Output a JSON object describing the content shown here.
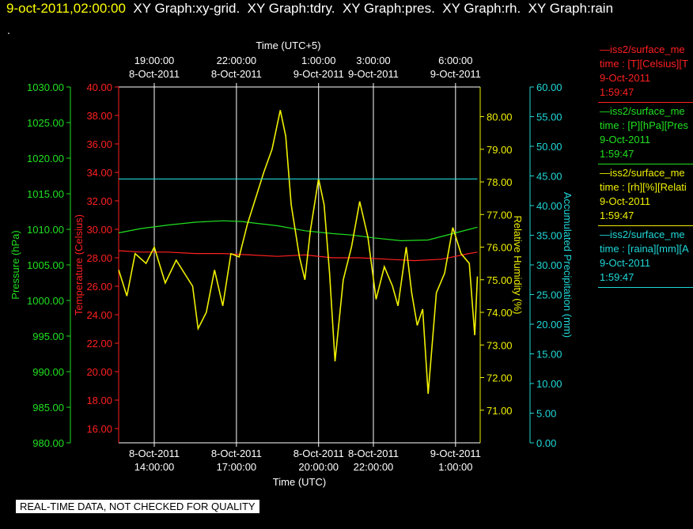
{
  "header": {
    "datetime": "9-oct-2011,02:00:00",
    "tabs": [
      "XY Graph:xy-grid.",
      "XY Graph:tdry.",
      "XY Graph:pres.",
      "XY Graph:rh.",
      "XY Graph:rain"
    ]
  },
  "dot": ".",
  "disclaimer": "REAL-TIME DATA, NOT CHECKED FOR QUALITY",
  "legend": [
    {
      "name": "—iss2/surface_me",
      "field": "time : [T][Celsius][T",
      "date": "9-Oct-2011",
      "time": "1:59:47",
      "color": "#ff2020"
    },
    {
      "name": "—iss2/surface_me",
      "field": "time : [P][hPa][Pres",
      "date": "9-Oct-2011",
      "time": "1:59:47",
      "color": "#20e020"
    },
    {
      "name": "—iss2/surface_me",
      "field": "time : [rh][%][Relati",
      "date": "9-Oct-2011",
      "time": "1:59:47",
      "color": "#f0f000"
    },
    {
      "name": "—iss2/surface_me",
      "field": "time : [raina][mm][A",
      "date": "9-Oct-2011",
      "time": "1:59:47",
      "color": "#20d8d8"
    }
  ],
  "chart_data": {
    "type": "line",
    "x_range_hours": [
      12.7,
      25.9
    ],
    "x_units": "hours UTC from 8-Oct-2011 00:00",
    "grid": "vertical lines at bottom tick positions",
    "top_axis": {
      "label": "Time (UTC+5)",
      "ticks": [
        {
          "time": "19:00:00",
          "date": "8-Oct-2011",
          "x": 14
        },
        {
          "time": "22:00:00",
          "date": "8-Oct-2011",
          "x": 17
        },
        {
          "time": "1:00:00",
          "date": "9-Oct-2011",
          "x": 20
        },
        {
          "time": "3:00:00",
          "date": "9-Oct-2011",
          "x": 22
        },
        {
          "time": "6:00:00",
          "date": "9-Oct-2011",
          "x": 25
        }
      ]
    },
    "bottom_axis": {
      "label": "Time (UTC)",
      "ticks": [
        {
          "date": "8-Oct-2011",
          "time": "14:00:00",
          "x": 14
        },
        {
          "date": "8-Oct-2011",
          "time": "17:00:00",
          "x": 17
        },
        {
          "date": "8-Oct-2011",
          "time": "20:00:00",
          "x": 20
        },
        {
          "date": "8-Oct-2011",
          "time": "22:00:00",
          "x": 22
        },
        {
          "date": "9-Oct-2011",
          "time": "1:00:00",
          "x": 25
        }
      ]
    },
    "y_axes": [
      {
        "id": "pres",
        "label": "Pressure (hPa)",
        "color": "#20e020",
        "range": [
          980,
          1030
        ],
        "ticks": [
          "980.00",
          "985.00",
          "990.00",
          "995.00",
          "1000.00",
          "1005.00",
          "1010.00",
          "1015.00",
          "1020.00",
          "1025.00",
          "1030.00"
        ]
      },
      {
        "id": "temp",
        "label": "Temperature (Celsius)",
        "color": "#ff2020",
        "range": [
          15,
          40
        ],
        "ticks": [
          "16.00",
          "18.00",
          "20.00",
          "22.00",
          "24.00",
          "26.00",
          "28.00",
          "30.00",
          "32.00",
          "34.00",
          "36.00",
          "38.00",
          "40.00"
        ]
      },
      {
        "id": "rh",
        "label": "Relative Humidity (%)",
        "color": "#f0f000",
        "range": [
          70.0,
          80.91
        ],
        "ticks": [
          "71.00",
          "72.00",
          "73.00",
          "74.00",
          "75.00",
          "76.00",
          "77.00",
          "78.00",
          "79.00",
          "80.00"
        ]
      },
      {
        "id": "rain",
        "label": "Accumulated Precipitation (mm)",
        "color": "#20d8d8",
        "range": [
          0,
          60
        ],
        "ticks": [
          "0.00",
          "5.00",
          "10.00",
          "15.00",
          "20.00",
          "25.00",
          "30.00",
          "35.00",
          "40.00",
          "45.00",
          "50.00",
          "55.00",
          "60.00"
        ]
      }
    ],
    "series": [
      {
        "name": "Pressure",
        "axis": "pres",
        "color": "#20e020",
        "x": [
          12.7,
          13.5,
          14.5,
          15.5,
          16.5,
          17.2,
          17.6,
          18.5,
          19.5,
          20.5,
          21.2,
          22.0,
          23.0,
          24.0,
          24.5,
          25.0,
          25.5,
          25.8
        ],
        "y": [
          1009.5,
          1010.1,
          1010.6,
          1011.0,
          1011.2,
          1011.1,
          1010.9,
          1010.5,
          1009.8,
          1009.4,
          1009.2,
          1008.8,
          1008.4,
          1008.5,
          1009.0,
          1009.5,
          1010.0,
          1010.3
        ]
      },
      {
        "name": "Temperature",
        "axis": "temp",
        "color": "#ff2020",
        "x": [
          12.7,
          13.5,
          14.5,
          15.5,
          16.5,
          17.5,
          18.5,
          19.5,
          20.5,
          21.5,
          22.5,
          23.5,
          24.5,
          25.0,
          25.5,
          25.8
        ],
        "y": [
          28.5,
          28.4,
          28.4,
          28.3,
          28.3,
          28.2,
          28.1,
          28.2,
          28.0,
          28.0,
          27.9,
          27.8,
          27.9,
          28.1,
          28.3,
          28.4
        ]
      },
      {
        "name": "Relative Humidity",
        "axis": "rh",
        "color": "#f0f000",
        "x": [
          12.7,
          13.0,
          13.3,
          13.7,
          14.0,
          14.4,
          14.8,
          15.1,
          15.4,
          15.6,
          15.9,
          16.2,
          16.5,
          16.8,
          17.1,
          17.4,
          17.7,
          18.0,
          18.3,
          18.6,
          18.8,
          19.0,
          19.3,
          19.5,
          19.7,
          20.0,
          20.2,
          20.4,
          20.6,
          20.9,
          21.2,
          21.5,
          21.8,
          22.1,
          22.4,
          22.7,
          22.9,
          23.2,
          23.4,
          23.6,
          23.8,
          24.0,
          24.3,
          24.6,
          24.9,
          25.2,
          25.5,
          25.7,
          25.8
        ],
        "y": [
          75.3,
          74.5,
          75.8,
          75.5,
          76.0,
          74.9,
          75.6,
          75.2,
          74.8,
          73.5,
          74.0,
          75.3,
          74.2,
          75.8,
          75.7,
          76.7,
          77.5,
          78.3,
          79.0,
          80.2,
          79.4,
          77.3,
          75.7,
          75.0,
          76.5,
          78.1,
          77.3,
          75.2,
          72.5,
          75.0,
          76.0,
          77.4,
          76.3,
          74.4,
          75.4,
          74.8,
          74.2,
          76.0,
          74.6,
          73.6,
          74.1,
          71.5,
          74.6,
          75.2,
          76.6,
          75.8,
          75.5,
          73.3,
          75.1
        ]
      },
      {
        "name": "Accumulated Precipitation",
        "axis": "rain",
        "color": "#20d8d8",
        "x": [
          12.7,
          25.8
        ],
        "y": [
          44.5,
          44.5
        ]
      }
    ]
  }
}
